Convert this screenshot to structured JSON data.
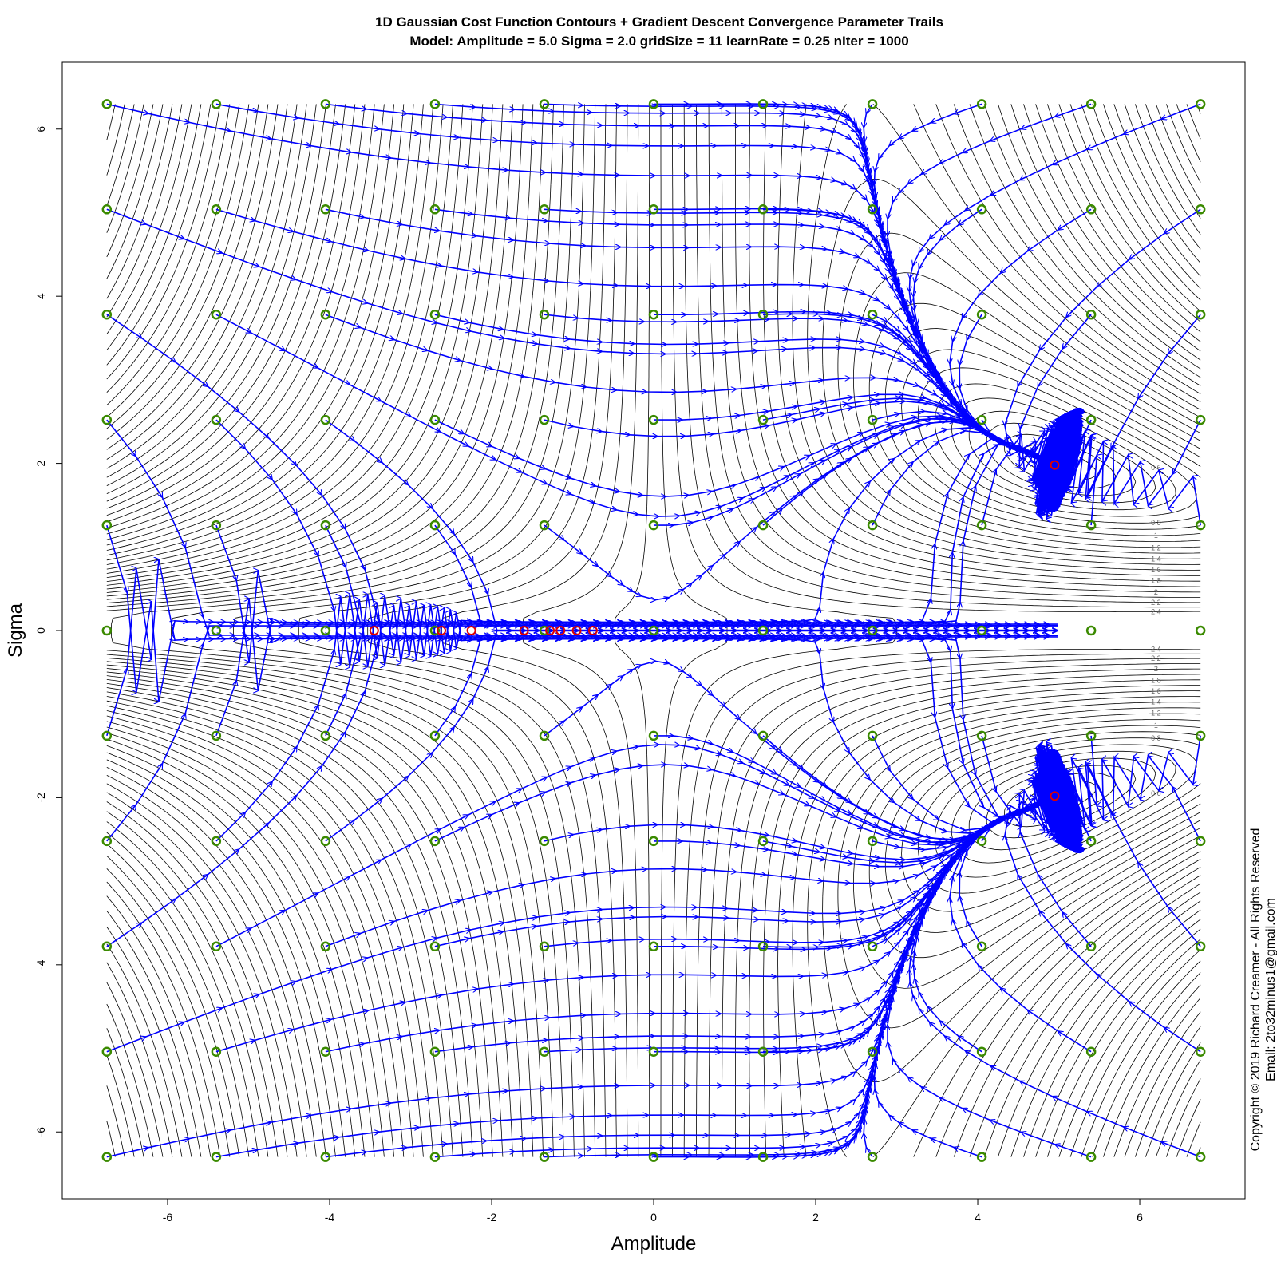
{
  "chart_data": {
    "type": "line",
    "title": "1D Gaussian Cost Function Contours + Gradient Descent Convergence Parameter Trails",
    "subtitle": "Model: Amplitude = 5.0  Sigma = 2.0  gridSize = 11  learnRate = 0.25 nIter = 1000",
    "xlabel": "Amplitude",
    "ylabel": "Sigma",
    "xlim": [
      -7.3,
      7.3
    ],
    "ylim": [
      -6.8,
      6.8
    ],
    "x_ticks": [
      "-6",
      "-4",
      "-2",
      "0",
      "2",
      "4",
      "6"
    ],
    "y_ticks": [
      "-6",
      "-4",
      "-2",
      "0",
      "2",
      "4",
      "6"
    ],
    "x_tick_values": [
      -6,
      -4,
      -2,
      0,
      2,
      4,
      6
    ],
    "y_tick_values": [
      -6,
      -4,
      -2,
      0,
      2,
      4,
      6
    ],
    "grid": false,
    "legend": "none",
    "model": {
      "amplitude": 5.0,
      "sigma": 2.0
    },
    "grid_points_x": [
      -6.75,
      -5.4,
      -4.05,
      -2.7,
      -1.35,
      0,
      1.35,
      2.7,
      4.05,
      5.4,
      6.75
    ],
    "grid_points_y": [
      -6.3,
      -5.04,
      -3.78,
      -2.52,
      -1.26,
      0,
      1.26,
      2.52,
      3.78,
      5.04,
      6.3
    ],
    "minima": [
      [
        4.95,
        1.98
      ],
      [
        4.95,
        -1.98
      ]
    ],
    "converged_near_zero_sigma": [
      -3.45,
      -2.62,
      -2.25,
      -1.6,
      -1.28,
      -1.15,
      -0.95,
      -0.75
    ],
    "contour_levels": [
      "0.2",
      "0.4",
      "0.6",
      "0.8",
      "1",
      "1.2",
      "1.4",
      "1.6",
      "1.8",
      "2",
      "2.2",
      "2.4",
      "2.6",
      "2.8",
      "3",
      "3.2",
      "3.4",
      "3.6",
      "3.8",
      "4",
      "4.2"
    ],
    "colors": {
      "contour": "#000000",
      "trail": "#0000ff",
      "start_point": "#3a8a00",
      "end_point": "#dd0000",
      "contour_label": "#666666"
    }
  },
  "copyright": {
    "line1": "Copyright © 2019 Richard Creamer - All Rights Reserved",
    "line2": "Email: 2to32minus1@gmail.com"
  }
}
